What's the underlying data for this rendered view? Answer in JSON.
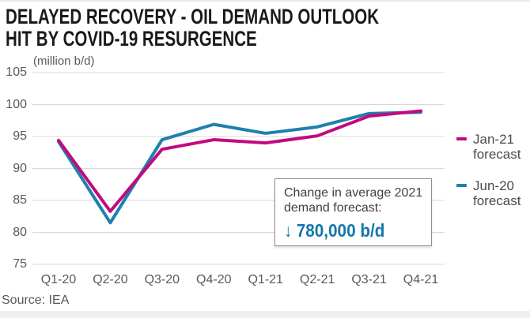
{
  "header": {
    "title_line1": "DELAYED RECOVERY - OIL DEMAND OUTLOOK",
    "title_line2": "HIT BY COVID-19 RESURGENCE"
  },
  "chart_data": {
    "type": "line",
    "title": "DELAYED RECOVERY - OIL DEMAND OUTLOOK HIT BY COVID-19 RESURGENCE",
    "unit_label": "(million b/d)",
    "categories": [
      "Q1-20",
      "Q2-20",
      "Q3-20",
      "Q4-20",
      "Q1-21",
      "Q2-21",
      "Q3-21",
      "Q4-21"
    ],
    "series": [
      {
        "name": "Jan-21 forecast",
        "color": "#c20a7e",
        "values": [
          94.4,
          83.3,
          93.0,
          94.5,
          94.0,
          95.1,
          98.2,
          99.0
        ]
      },
      {
        "name": "Jun-20 forecast",
        "color": "#1e81ab",
        "values": [
          94.2,
          81.5,
          94.5,
          96.9,
          95.5,
          96.5,
          98.6,
          98.8
        ]
      }
    ],
    "ylim": [
      75,
      105
    ],
    "yticks": [
      105,
      100,
      95,
      90,
      85,
      80,
      75
    ],
    "grid": true,
    "legend_position": "right"
  },
  "annotation": {
    "line1": "Change in average 2021",
    "line2": "demand forecast:",
    "arrow": "↓",
    "value": "780,000 b/d",
    "value_color": "#1477a9"
  },
  "footer": {
    "source": "Source: IEA"
  }
}
